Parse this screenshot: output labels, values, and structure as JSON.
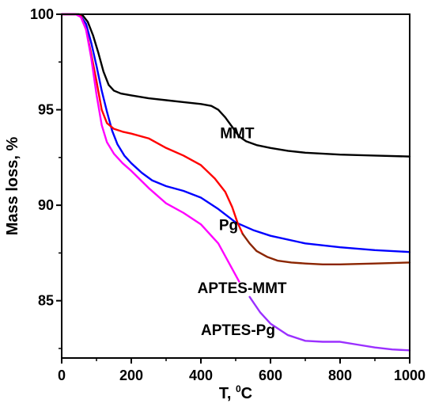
{
  "chart_data": {
    "type": "line",
    "xlabel": "T, ",
    "xlabel_unit_sup": "0",
    "xlabel_unit": "C",
    "ylabel": "Mass loss, %",
    "xlim": [
      0,
      1000
    ],
    "ylim": [
      82,
      100
    ],
    "xticks": [
      0,
      200,
      400,
      600,
      800,
      1000
    ],
    "yticks": [
      85,
      90,
      95,
      100
    ],
    "grid": false,
    "legend": "none",
    "series": [
      {
        "name": "MMT",
        "color": "#000000",
        "x": [
          0,
          50,
          60,
          75,
          90,
          105,
          120,
          135,
          150,
          170,
          200,
          250,
          300,
          350,
          400,
          430,
          450,
          470,
          490,
          510,
          530,
          560,
          600,
          650,
          700,
          800,
          900,
          1000
        ],
        "y": [
          100,
          100,
          99.95,
          99.6,
          98.9,
          98,
          97.0,
          96.3,
          96.0,
          95.85,
          95.75,
          95.6,
          95.5,
          95.4,
          95.3,
          95.2,
          95.0,
          94.6,
          94.1,
          93.6,
          93.35,
          93.15,
          93.0,
          92.85,
          92.75,
          92.65,
          92.6,
          92.55
        ]
      },
      {
        "name": "Pg",
        "color": "#0000ff",
        "x": [
          0,
          40,
          55,
          70,
          85,
          100,
          115,
          130,
          145,
          160,
          180,
          200,
          230,
          260,
          300,
          350,
          400,
          450,
          500,
          550,
          600,
          700,
          800,
          900,
          1000
        ],
        "y": [
          100,
          100,
          99.9,
          99.5,
          98.5,
          97.3,
          96.0,
          94.9,
          93.9,
          93.2,
          92.6,
          92.2,
          91.7,
          91.3,
          91.0,
          90.75,
          90.4,
          89.8,
          89.1,
          88.7,
          88.4,
          88.0,
          87.8,
          87.65,
          87.55
        ]
      },
      {
        "name": "APTES-MMT",
        "color": "#ff0000",
        "tail_color": "#8b2500",
        "split_x": 520,
        "x": [
          0,
          40,
          55,
          70,
          85,
          100,
          115,
          130,
          150,
          175,
          200,
          250,
          300,
          350,
          400,
          440,
          470,
          490,
          505,
          520,
          540,
          560,
          590,
          620,
          660,
          700,
          750,
          800,
          900,
          1000
        ],
        "y": [
          100,
          100,
          99.9,
          99.2,
          97.9,
          96.5,
          95.0,
          94.3,
          94.0,
          93.85,
          93.75,
          93.5,
          93.0,
          92.6,
          92.1,
          91.4,
          90.7,
          89.9,
          89.1,
          88.5,
          88.0,
          87.6,
          87.3,
          87.1,
          87.0,
          86.95,
          86.9,
          86.9,
          86.95,
          87.0
        ]
      },
      {
        "name": "APTES-Pg",
        "color": "#ff00ff",
        "tail_color": "#9b30ff",
        "split_x": 520,
        "x": [
          0,
          40,
          55,
          70,
          85,
          100,
          115,
          130,
          150,
          175,
          200,
          250,
          300,
          350,
          400,
          450,
          480,
          510,
          540,
          570,
          600,
          650,
          700,
          750,
          800,
          850,
          900,
          950,
          1000
        ],
        "y": [
          100,
          100,
          99.85,
          99.2,
          97.7,
          95.8,
          94.2,
          93.3,
          92.7,
          92.2,
          91.8,
          90.9,
          90.1,
          89.6,
          89.0,
          88.0,
          87.0,
          86.0,
          85.2,
          84.4,
          83.8,
          83.2,
          82.9,
          82.85,
          82.85,
          82.7,
          82.55,
          82.45,
          82.4
        ]
      }
    ],
    "annotations": [
      {
        "text": "MMT",
        "x": 455,
        "y": 93.5
      },
      {
        "text": "Pg",
        "x": 452,
        "y": 88.7
      },
      {
        "text": "APTES-MMT",
        "x": 390,
        "y": 85.4
      },
      {
        "text": "APTES-Pg",
        "x": 400,
        "y": 83.2
      }
    ]
  }
}
